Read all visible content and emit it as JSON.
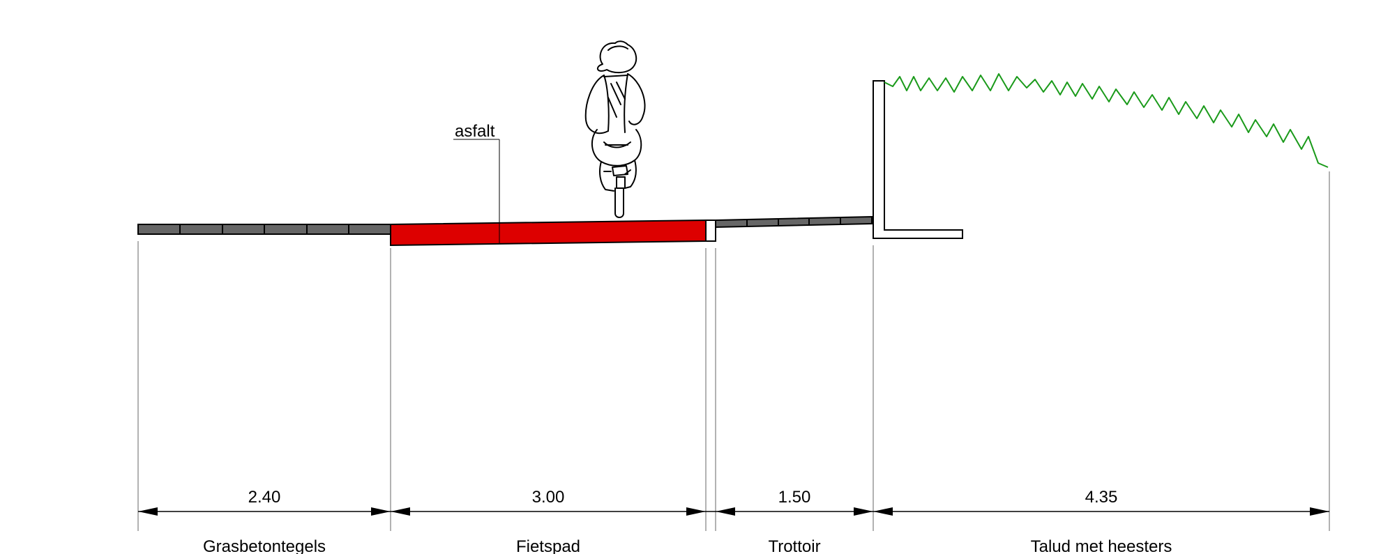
{
  "annotation": {
    "material_label": "asfalt"
  },
  "segments": [
    {
      "id": "grasbeton",
      "dimension": "2.40",
      "label": "Grasbetontegels"
    },
    {
      "id": "fietspad",
      "dimension": "3.00",
      "label": "Fietspad"
    },
    {
      "id": "trottoir",
      "dimension": "1.50",
      "label": "Trottoir"
    },
    {
      "id": "talud",
      "dimension": "4.35",
      "label": "Talud met heesters"
    }
  ],
  "colors": {
    "asphalt": "#dd0000",
    "tiles": "#666666",
    "hedge": "#1a9a1a",
    "line": "#000000",
    "extension_line": "#999999"
  }
}
